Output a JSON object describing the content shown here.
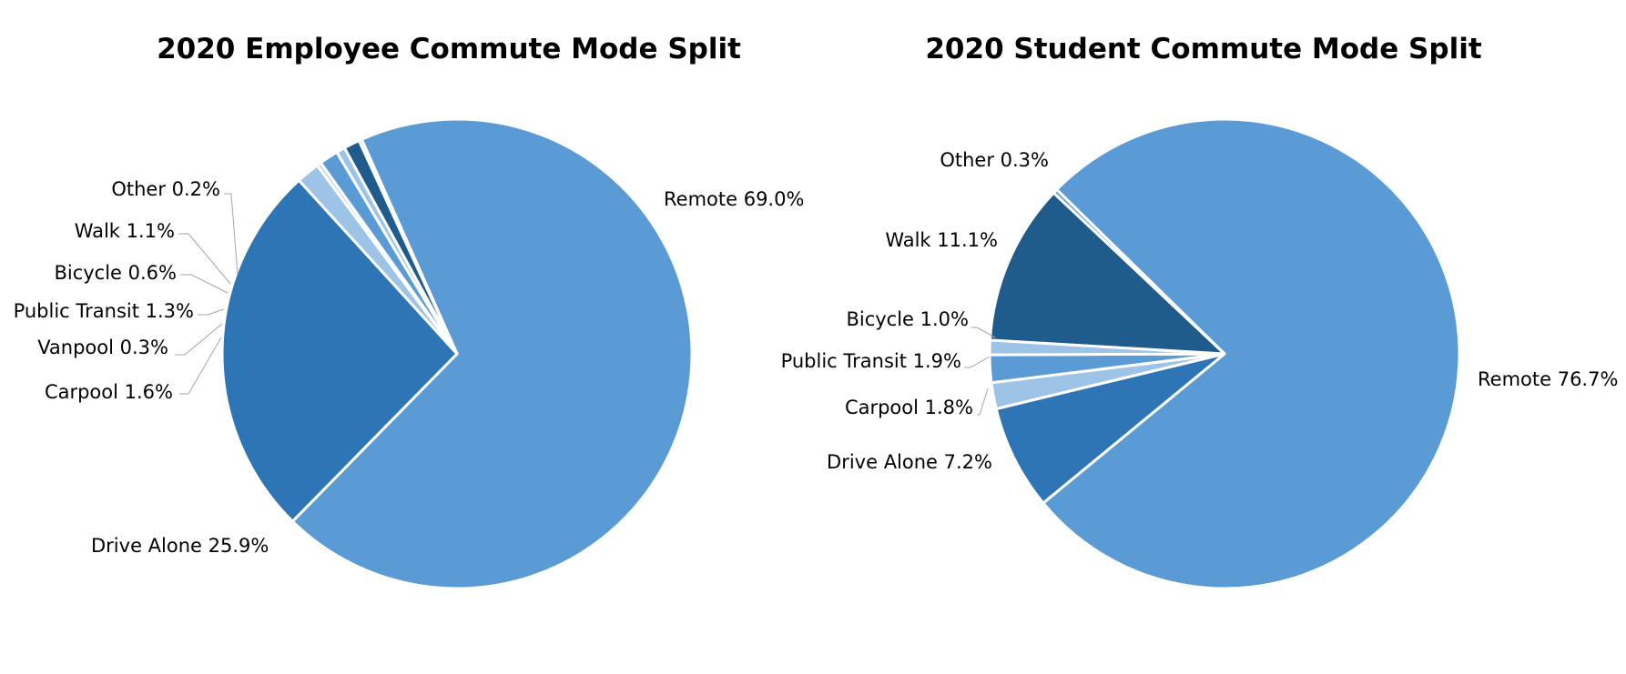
{
  "chart_data": [
    {
      "type": "pie",
      "title": "2020 Employee Commute Mode Split",
      "start_angle_deg": -23.95,
      "slices": [
        {
          "name": "Remote",
          "value": 69.0,
          "color": "#5b9bd5",
          "label": "Remote 69.0%"
        },
        {
          "name": "Drive Alone",
          "value": 25.9,
          "color": "#2e75b6",
          "label": "Drive Alone 25.9%"
        },
        {
          "name": "Carpool",
          "value": 1.6,
          "color": "#9dc3e6",
          "label": "Carpool 1.6%"
        },
        {
          "name": "Vanpool",
          "value": 0.3,
          "color": "#bdd7ee",
          "label": "Vanpool 0.3%"
        },
        {
          "name": "Public Transit",
          "value": 1.3,
          "color": "#5b9bd5",
          "label": "Public Transit 1.3%"
        },
        {
          "name": "Bicycle",
          "value": 0.6,
          "color": "#9dc3e6",
          "label": "Bicycle 0.6%"
        },
        {
          "name": "Walk",
          "value": 1.1,
          "color": "#1f5c8b",
          "label": "Walk 1.1%"
        },
        {
          "name": "Other",
          "value": 0.2,
          "color": "#5b9bd5",
          "label": "Other 0.2%"
        }
      ]
    },
    {
      "type": "pie",
      "title": "2020 Student Commute Mode Split",
      "start_angle_deg": -45.6,
      "slices": [
        {
          "name": "Remote",
          "value": 76.7,
          "color": "#5b9bd5",
          "label": "Remote 76.7%"
        },
        {
          "name": "Drive Alone",
          "value": 7.2,
          "color": "#2e75b6",
          "label": "Drive Alone 7.2%"
        },
        {
          "name": "Carpool",
          "value": 1.8,
          "color": "#9dc3e6",
          "label": "Carpool 1.8%"
        },
        {
          "name": "Public Transit",
          "value": 1.9,
          "color": "#5b9bd5",
          "label": "Public Transit 1.9%"
        },
        {
          "name": "Bicycle",
          "value": 1.0,
          "color": "#9dc3e6",
          "label": "Bicycle 1.0%"
        },
        {
          "name": "Walk",
          "value": 11.1,
          "color": "#1f5c8b",
          "label": "Walk 11.1%"
        },
        {
          "name": "Other",
          "value": 0.3,
          "color": "#5b9bd5",
          "label": "Other 0.3%"
        }
      ]
    }
  ]
}
